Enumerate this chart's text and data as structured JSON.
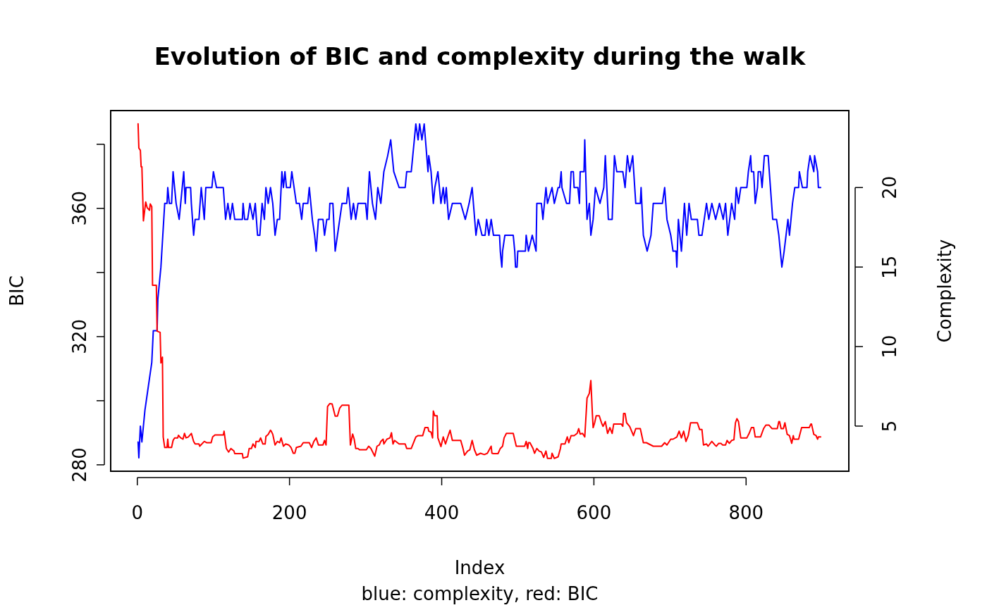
{
  "chart_data": {
    "type": "line",
    "title": "Evolution of BIC and complexity during the walk",
    "xlabel": "Index",
    "ylabel": "BIC",
    "y2label": "Complexity",
    "annotations": [
      "blue: complexity, red: BIC"
    ],
    "xlim": [
      -35,
      935
    ],
    "xticks": [
      0,
      200,
      400,
      600,
      800
    ],
    "ylim": [
      278,
      390.5
    ],
    "yticks": [
      280,
      {
        "value": 300,
        "label": null
      },
      320,
      {
        "value": 340,
        "label": null
      },
      360,
      {
        "value": 380,
        "label": null
      }
    ],
    "y2lim": [
      2.16,
      24.84
    ],
    "y2ticks": [
      5,
      10,
      15,
      20
    ],
    "series": [
      {
        "color": "#0000ff",
        "axis": "y2",
        "x": [
          1,
          2,
          4,
          6,
          10,
          13,
          16,
          19,
          21,
          26,
          27,
          31,
          36,
          39,
          40,
          42,
          45,
          47,
          51,
          55,
          57,
          61,
          63,
          64,
          70,
          71,
          74,
          76,
          81,
          84,
          88,
          90,
          98,
          100,
          104,
          113,
          116,
          119,
          122,
          125,
          128,
          138,
          139,
          141,
          145,
          148,
          152,
          155,
          158,
          161,
          164,
          167,
          169,
          172,
          175,
          178,
          181,
          184,
          187,
          190,
          192,
          194,
          196,
          201,
          203,
          206,
          209,
          213,
          216,
          218,
          224,
          226,
          230,
          233,
          235,
          238,
          244,
          246,
          249,
          252,
          253,
          257,
          260,
          263,
          266,
          269,
          275,
          277,
          281,
          284,
          287,
          290,
          300,
          302,
          305,
          309,
          313,
          316,
          320,
          324,
          329,
          333,
          337,
          344,
          352,
          354,
          360,
          362,
          364,
          366,
          369,
          371,
          374,
          377,
          382,
          383,
          386,
          389,
          391,
          395,
          399,
          402,
          404,
          406,
          409,
          414,
          425,
          431,
          436,
          440,
          445,
          448,
          453,
          457,
          459,
          462,
          465,
          468,
          476,
          477,
          479,
          480,
          483,
          494,
          496,
          497,
          499,
          500,
          510,
          511,
          514,
          519,
          524,
          525,
          531,
          533,
          537,
          539,
          545,
          548,
          553,
          555,
          557,
          558,
          564,
          568,
          570,
          573,
          574,
          579,
          581,
          582,
          587,
          588,
          591,
          594,
          596,
          599,
          602,
          608,
          613,
          615,
          619,
          624,
          627,
          630,
          638,
          641,
          644,
          647,
          651,
          655,
          661,
          662,
          665,
          670,
          675,
          678,
          690,
          693,
          696,
          701,
          704,
          708,
          709,
          711,
          715,
          719,
          722,
          725,
          728,
          736,
          738,
          742,
          745,
          748,
          751,
          755,
          760,
          765,
          770,
          773,
          776,
          781,
          785,
          787,
          790,
          793,
          801,
          803,
          806,
          807,
          810,
          812,
          815,
          816,
          819,
          821,
          824,
          829,
          832,
          835,
          840,
          843,
          847,
          850,
          855,
          857,
          861,
          864,
          869,
          870,
          874,
          880,
          881,
          884,
          889,
          890,
          894,
          895,
          898
        ],
        "values": [
          4,
          3,
          5,
          4,
          6,
          7,
          8,
          9,
          11,
          11,
          13,
          15,
          19,
          19,
          20,
          19,
          19,
          21,
          19,
          18,
          19,
          21,
          19,
          20,
          20,
          19,
          17,
          18,
          18,
          20,
          18,
          20,
          20,
          21,
          20,
          20,
          18,
          19,
          18,
          19,
          18,
          18,
          19,
          18,
          18,
          19,
          18,
          19,
          17,
          17,
          19,
          18,
          20,
          19,
          20,
          19,
          17,
          18,
          18,
          21,
          20,
          21,
          20,
          20,
          21,
          20,
          19,
          19,
          18,
          19,
          19,
          20,
          18,
          17,
          16,
          18,
          18,
          17,
          18,
          18,
          19,
          19,
          16,
          17,
          18,
          19,
          19,
          20,
          18,
          19,
          18,
          19,
          19,
          18,
          21,
          19,
          18,
          20,
          19,
          21,
          22,
          23,
          21,
          20,
          20,
          21,
          21,
          22,
          23,
          24,
          23,
          24,
          23,
          24,
          21,
          22,
          21,
          19,
          20,
          21,
          19,
          20,
          19,
          20,
          18,
          19,
          19,
          18,
          19,
          20,
          17,
          18,
          17,
          17,
          18,
          17,
          18,
          17,
          17,
          16,
          15,
          16,
          17,
          17,
          16,
          15,
          15,
          16,
          16,
          17,
          16,
          17,
          16,
          19,
          19,
          18,
          20,
          19,
          20,
          19,
          20,
          20,
          21,
          20,
          19,
          19,
          21,
          21,
          20,
          20,
          19,
          21,
          21,
          23,
          18,
          19,
          17,
          18,
          20,
          19,
          20,
          22,
          18,
          18,
          22,
          21,
          21,
          20,
          22,
          21,
          22,
          19,
          19,
          20,
          17,
          16,
          17,
          19,
          19,
          20,
          18,
          17,
          16,
          16,
          15,
          18,
          16,
          19,
          17,
          19,
          18,
          18,
          17,
          17,
          18,
          19,
          18,
          19,
          18,
          19,
          18,
          19,
          17,
          19,
          18,
          20,
          19,
          20,
          20,
          21,
          22,
          21,
          21,
          19,
          20,
          21,
          21,
          20,
          22,
          22,
          20,
          18,
          18,
          17,
          15,
          16,
          18,
          17,
          19,
          20,
          20,
          21,
          20,
          20,
          21,
          22,
          21,
          22,
          21,
          20,
          20
        ]
      },
      {
        "color": "#ff0000",
        "x": [
          1,
          2,
          4,
          5,
          6,
          8,
          11,
          13,
          16,
          17,
          19,
          20,
          25,
          26,
          30,
          31,
          33,
          34,
          36,
          39,
          40,
          41,
          45,
          47,
          49,
          53,
          54,
          57,
          60,
          62,
          64,
          67,
          71,
          74,
          76,
          81,
          82,
          88,
          91,
          97,
          99,
          102,
          113,
          114,
          117,
          120,
          123,
          127,
          128,
          138,
          139,
          145,
          147,
          150,
          152,
          155,
          156,
          160,
          162,
          165,
          168,
          169,
          172,
          175,
          176,
          178,
          181,
          184,
          187,
          189,
          192,
          195,
          199,
          202,
          205,
          207,
          209,
          215,
          218,
          226,
          229,
          232,
          235,
          238,
          244,
          246,
          248,
          250,
          253,
          256,
          260,
          263,
          266,
          269,
          278,
          280,
          283,
          285,
          287,
          290,
          292,
          301,
          304,
          307,
          312,
          315,
          318,
          320,
          323,
          324,
          328,
          332,
          334,
          336,
          338,
          344,
          352,
          354,
          360,
          366,
          369,
          375,
          378,
          382,
          383,
          386,
          388,
          389,
          391,
          394,
          395,
          399,
          402,
          405,
          408,
          411,
          414,
          425,
          428,
          430,
          434,
          437,
          440,
          443,
          446,
          451,
          456,
          460,
          465,
          466,
          468,
          474,
          477,
          480,
          482,
          485,
          494,
          498,
          509,
          511,
          513,
          514,
          516,
          520,
          522,
          525,
          528,
          531,
          534,
          537,
          539,
          544,
          545,
          548,
          553,
          556,
          557,
          562,
          565,
          567,
          570,
          574,
          578,
          580,
          582,
          585,
          588,
          591,
          594,
          596,
          598,
          599,
          601,
          603,
          607,
          610,
          612,
          615,
          618,
          621,
          624,
          626,
          636,
          638,
          639,
          641,
          643,
          647,
          652,
          655,
          661,
          665,
          669,
          678,
          689,
          693,
          696,
          701,
          704,
          709,
          712,
          715,
          718,
          721,
          724,
          727,
          736,
          739,
          742,
          744,
          748,
          750,
          755,
          759,
          761,
          764,
          767,
          769,
          773,
          775,
          778,
          781,
          784,
          786,
          788,
          790,
          793,
          801,
          804,
          807,
          810,
          812,
          819,
          823,
          826,
          830,
          834,
          841,
          843,
          844,
          846,
          849,
          851,
          854,
          857,
          860,
          862,
          863,
          869,
          873,
          883,
          885,
          886,
          889,
          892,
          894,
          895,
          898
        ],
        "values": [
          386.4,
          378.8,
          378.1,
          373,
          373,
          356.1,
          362,
          360.2,
          359.4,
          361.4,
          360.5,
          336,
          336,
          321.7,
          321.3,
          311.8,
          313.6,
          288.7,
          285.4,
          285.4,
          288,
          285.4,
          285.4,
          287.6,
          288.4,
          288.4,
          289.2,
          288.4,
          288,
          289.8,
          288.4,
          288.7,
          289.8,
          287.3,
          286.5,
          286.5,
          285.8,
          287.3,
          286.9,
          286.9,
          288.7,
          289.3,
          289.3,
          290.5,
          285.1,
          284,
          285.1,
          284.3,
          283.5,
          283.5,
          282.1,
          282.5,
          285.1,
          285.1,
          286.5,
          285.4,
          287.3,
          287.3,
          288.4,
          286.5,
          286.5,
          288.9,
          289.5,
          290.8,
          290.5,
          289.5,
          286.2,
          287.3,
          286.9,
          288.4,
          285.8,
          286.5,
          286.2,
          285.4,
          283.6,
          283.6,
          285.4,
          285.8,
          286.9,
          286.9,
          285.4,
          287.3,
          288.4,
          286.2,
          286.2,
          287.6,
          286.2,
          298.2,
          299.1,
          299,
          295.2,
          295.2,
          297.7,
          298.6,
          298.6,
          286.2,
          289.6,
          288,
          285.1,
          285.1,
          284.7,
          284.7,
          285.8,
          285.1,
          282.7,
          285.8,
          286.2,
          287.3,
          288,
          286.5,
          288,
          288.4,
          290,
          286.5,
          287.6,
          286.5,
          286.5,
          285.1,
          285.1,
          288.7,
          289.1,
          289.1,
          291.6,
          291.6,
          290.5,
          290.2,
          288.4,
          296.8,
          295.3,
          295.3,
          288.4,
          285.7,
          288.7,
          286.5,
          288.7,
          290.8,
          287.6,
          287.6,
          285.1,
          283,
          284.3,
          284.7,
          287.6,
          284.7,
          283,
          283.6,
          283.2,
          283.6,
          285.8,
          283.6,
          283.5,
          283.5,
          285.1,
          285.8,
          288.4,
          289.8,
          289.8,
          285.8,
          285.8,
          287.3,
          285.1,
          286.9,
          286.9,
          285.1,
          283.6,
          285.1,
          284.3,
          284,
          282.3,
          284.3,
          282,
          282,
          283.6,
          282,
          282.5,
          285.1,
          286.5,
          286.5,
          288.7,
          286.9,
          289.1,
          289.1,
          289.8,
          291.3,
          289.6,
          289.8,
          288.7,
          300.8,
          302.3,
          306.3,
          296,
          291.6,
          293.1,
          295.3,
          295.3,
          293.1,
          292,
          293.5,
          289.8,
          291.6,
          289.8,
          292.7,
          292.7,
          292,
          296,
          296,
          293.1,
          292,
          289.1,
          291.3,
          291.3,
          286.9,
          286.9,
          285.8,
          285.8,
          286.9,
          286.2,
          288,
          288,
          288.7,
          290.5,
          288.4,
          290.5,
          287.3,
          289.1,
          293.1,
          293.1,
          291,
          291,
          286.2,
          286.5,
          285.8,
          287.3,
          286.2,
          285.8,
          286.7,
          286.7,
          286.2,
          286.2,
          287.6,
          286.7,
          287.6,
          287.8,
          293.1,
          294.4,
          293.5,
          288.4,
          288.4,
          289.8,
          291.6,
          291.6,
          288.7,
          288.7,
          291.3,
          292.4,
          292.4,
          291.3,
          291.3,
          293.5,
          293.5,
          291.3,
          291.3,
          293.1,
          289.5,
          289.1,
          286.7,
          289.1,
          288,
          288,
          291.6,
          291.6,
          292.7,
          292.7,
          289.5,
          289.1,
          288,
          288.7,
          288.7
        ]
      }
    ]
  }
}
